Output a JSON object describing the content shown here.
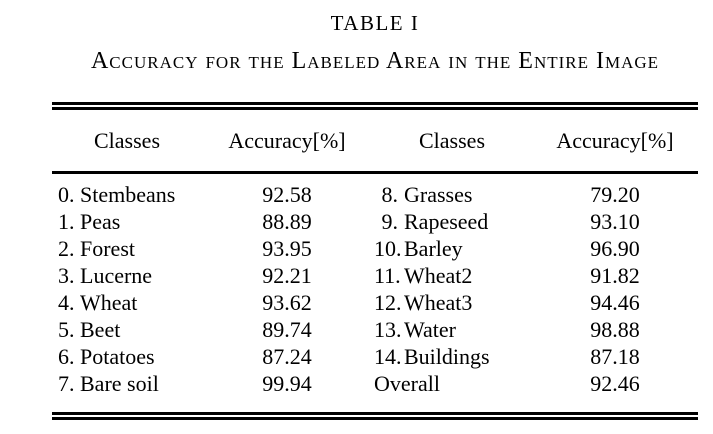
{
  "page": {
    "table_label": "TABLE I",
    "caption": "Accuracy for the Labeled Area in the Entire Image",
    "header": [
      "Classes",
      "Accuracy[%]",
      "Classes",
      "Accuracy[%]"
    ],
    "rows": [
      {
        "left": {
          "num": "0.",
          "name": "Stembeans",
          "acc": "92.58"
        },
        "right": {
          "num": "8.",
          "name": "Grasses",
          "acc": "79.20"
        }
      },
      {
        "left": {
          "num": "1.",
          "name": "Peas",
          "acc": "88.89"
        },
        "right": {
          "num": "9.",
          "name": "Rapeseed",
          "acc": "93.10"
        }
      },
      {
        "left": {
          "num": "2.",
          "name": "Forest",
          "acc": "93.95"
        },
        "right": {
          "num": "10.",
          "name": "Barley",
          "acc": "96.90"
        }
      },
      {
        "left": {
          "num": "3.",
          "name": "Lucerne",
          "acc": "92.21"
        },
        "right": {
          "num": "11.",
          "name": "Wheat2",
          "acc": "91.82"
        }
      },
      {
        "left": {
          "num": "4.",
          "name": "Wheat",
          "acc": "93.62"
        },
        "right": {
          "num": "12.",
          "name": "Wheat3",
          "acc": "94.46"
        }
      },
      {
        "left": {
          "num": "5.",
          "name": "Beet",
          "acc": "89.74"
        },
        "right": {
          "num": "13.",
          "name": "Water",
          "acc": "98.88"
        }
      },
      {
        "left": {
          "num": "6.",
          "name": "Potatoes",
          "acc": "87.24"
        },
        "right": {
          "num": "14.",
          "name": "Buildings",
          "acc": "87.18"
        }
      },
      {
        "left": {
          "num": "7.",
          "name": "Bare soil",
          "acc": "99.94"
        },
        "right": {
          "num": "",
          "name": "Overall",
          "acc": "92.46"
        }
      }
    ]
  }
}
